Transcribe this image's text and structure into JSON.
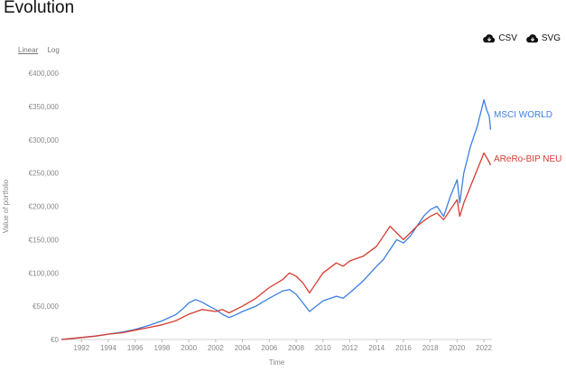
{
  "header": {
    "title": "Evolution"
  },
  "scale_toggle": {
    "linear_label": "Linear",
    "log_label": "Log",
    "active": "Linear"
  },
  "downloads": {
    "csv_label": "CSV",
    "svg_label": "SVG",
    "icon": "cloud-download-icon"
  },
  "chart_data": {
    "type": "line",
    "title": "Evolution",
    "xlabel": "Time",
    "ylabel": "Value of portfolio",
    "xlim": [
      1990.5,
      2022.6
    ],
    "ylim": [
      0,
      400000
    ],
    "x_ticks": [
      1992,
      1994,
      1996,
      1998,
      2000,
      2002,
      2004,
      2006,
      2008,
      2010,
      2012,
      2014,
      2016,
      2018,
      2020,
      2022
    ],
    "y_ticks": [
      0,
      50000,
      100000,
      150000,
      200000,
      250000,
      300000,
      350000,
      400000
    ],
    "y_tick_labels": [
      "€0",
      "€50,000",
      "€100,000",
      "€150,000",
      "€200,000",
      "€250,000",
      "€300,000",
      "€350,000",
      "€400,000"
    ],
    "grid": false,
    "legend": "inline-right",
    "series": [
      {
        "name": "MSCI WORLD",
        "color": "#3b7fe0",
        "points": [
          [
            1990.5,
            0
          ],
          [
            1991,
            1000
          ],
          [
            1992,
            3000
          ],
          [
            1993,
            5000
          ],
          [
            1994,
            8000
          ],
          [
            1995,
            11000
          ],
          [
            1996,
            15000
          ],
          [
            1997,
            21000
          ],
          [
            1998,
            28000
          ],
          [
            1999,
            37000
          ],
          [
            1999.5,
            45000
          ],
          [
            2000,
            55000
          ],
          [
            2000.5,
            60000
          ],
          [
            2001,
            56000
          ],
          [
            2001.5,
            50000
          ],
          [
            2002,
            45000
          ],
          [
            2002.5,
            38000
          ],
          [
            2003,
            33000
          ],
          [
            2003.5,
            37000
          ],
          [
            2004,
            42000
          ],
          [
            2005,
            50000
          ],
          [
            2006,
            62000
          ],
          [
            2007,
            73000
          ],
          [
            2007.5,
            75000
          ],
          [
            2008,
            68000
          ],
          [
            2008.5,
            55000
          ],
          [
            2009,
            42000
          ],
          [
            2009.5,
            50000
          ],
          [
            2010,
            58000
          ],
          [
            2011,
            65000
          ],
          [
            2011.5,
            62000
          ],
          [
            2012,
            70000
          ],
          [
            2013,
            88000
          ],
          [
            2014,
            110000
          ],
          [
            2014.5,
            120000
          ],
          [
            2015,
            135000
          ],
          [
            2015.5,
            150000
          ],
          [
            2016,
            145000
          ],
          [
            2016.5,
            155000
          ],
          [
            2017,
            170000
          ],
          [
            2017.5,
            185000
          ],
          [
            2018,
            195000
          ],
          [
            2018.5,
            200000
          ],
          [
            2019,
            185000
          ],
          [
            2019.5,
            215000
          ],
          [
            2020,
            240000
          ],
          [
            2020.2,
            205000
          ],
          [
            2020.5,
            250000
          ],
          [
            2021,
            290000
          ],
          [
            2021.5,
            320000
          ],
          [
            2022,
            360000
          ],
          [
            2022.2,
            345000
          ],
          [
            2022.4,
            335000
          ],
          [
            2022.5,
            315000
          ]
        ]
      },
      {
        "name": "AReRo-BIP NEU",
        "color": "#d63b2f",
        "points": [
          [
            1990.5,
            0
          ],
          [
            1991,
            1000
          ],
          [
            1992,
            3000
          ],
          [
            1993,
            5000
          ],
          [
            1994,
            8000
          ],
          [
            1995,
            10000
          ],
          [
            1996,
            14000
          ],
          [
            1997,
            18000
          ],
          [
            1998,
            22000
          ],
          [
            1999,
            28000
          ],
          [
            2000,
            38000
          ],
          [
            2001,
            45000
          ],
          [
            2002,
            42000
          ],
          [
            2002.5,
            45000
          ],
          [
            2003,
            40000
          ],
          [
            2004,
            50000
          ],
          [
            2005,
            62000
          ],
          [
            2006,
            78000
          ],
          [
            2007,
            90000
          ],
          [
            2007.5,
            100000
          ],
          [
            2008,
            95000
          ],
          [
            2008.5,
            85000
          ],
          [
            2009,
            70000
          ],
          [
            2009.5,
            85000
          ],
          [
            2010,
            100000
          ],
          [
            2011,
            115000
          ],
          [
            2011.5,
            110000
          ],
          [
            2012,
            118000
          ],
          [
            2013,
            125000
          ],
          [
            2014,
            140000
          ],
          [
            2014.5,
            155000
          ],
          [
            2015,
            170000
          ],
          [
            2015.5,
            160000
          ],
          [
            2016,
            150000
          ],
          [
            2016.5,
            160000
          ],
          [
            2017,
            170000
          ],
          [
            2017.5,
            178000
          ],
          [
            2018,
            185000
          ],
          [
            2018.5,
            190000
          ],
          [
            2019,
            180000
          ],
          [
            2019.5,
            195000
          ],
          [
            2020,
            210000
          ],
          [
            2020.2,
            185000
          ],
          [
            2020.5,
            205000
          ],
          [
            2021,
            230000
          ],
          [
            2021.5,
            255000
          ],
          [
            2022,
            280000
          ],
          [
            2022.3,
            270000
          ],
          [
            2022.5,
            262000
          ]
        ]
      }
    ]
  }
}
